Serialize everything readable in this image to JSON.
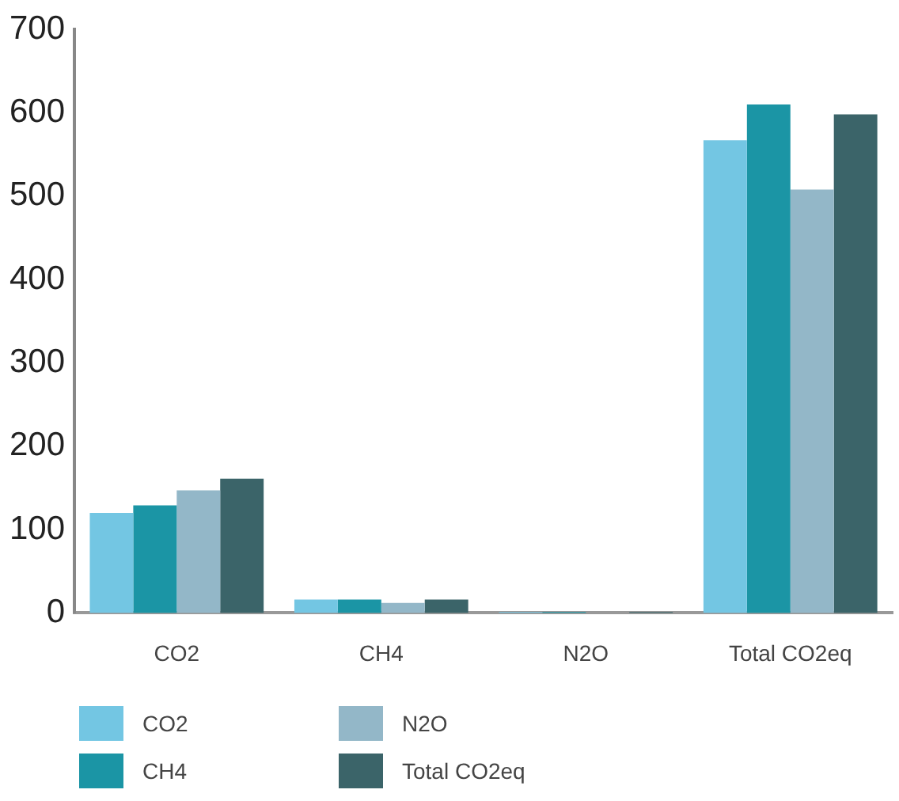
{
  "chart_data": {
    "type": "bar",
    "categories": [
      "CO2",
      "CH4",
      "N2O",
      "Total CO2eq"
    ],
    "series": [
      {
        "name": "CO2",
        "color": "#73c6e3",
        "values": [
          120,
          16,
          1,
          567
        ]
      },
      {
        "name": "CH4",
        "color": "#1b95a5",
        "values": [
          129,
          16,
          1,
          610
        ]
      },
      {
        "name": "N2O",
        "color": "#93b7c8",
        "values": [
          147,
          12,
          null,
          508
        ]
      },
      {
        "name": "Total CO2eq",
        "color": "#3b6469",
        "values": [
          161,
          16,
          1,
          598
        ]
      }
    ],
    "ylim": [
      0,
      700
    ],
    "yticks": [
      0,
      100,
      200,
      300,
      400,
      500,
      600,
      700
    ],
    "grid": false,
    "legend": "bottom"
  }
}
